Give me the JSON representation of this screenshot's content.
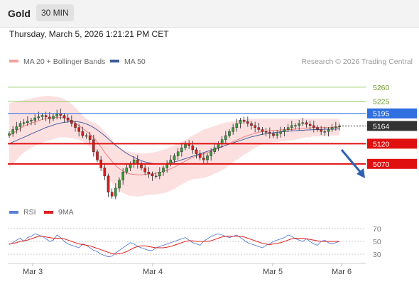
{
  "header": {
    "title": "Gold",
    "timeframe": "30 MIN"
  },
  "datetime": "Thursday, March 5, 2026 1:21:21 PM CET",
  "legend": {
    "items": [
      {
        "label": "MA 20 + Bollinger Bands",
        "color": "#f4a0a0"
      },
      {
        "label": "MA 50",
        "color": "#3d5a99"
      }
    ],
    "credit": "Research © 2026 Trading Central"
  },
  "rsi_legend": {
    "items": [
      {
        "label": "RSI",
        "color": "#5b7fd6"
      },
      {
        "label": "9MA",
        "color": "#e02020"
      }
    ]
  },
  "chart_data": [
    {
      "type": "candlestick",
      "ylim": [
        4980,
        5300
      ],
      "x_ticks": [
        "Mar 3",
        "Mar 4",
        "Mar 5",
        "Mar 6"
      ],
      "last_price": 5164,
      "levels": [
        {
          "value": 5260,
          "label": "5260",
          "kind": "resistance",
          "color": "#9acd6a"
        },
        {
          "value": 5225,
          "label": "5225",
          "kind": "resistance",
          "color": "#9acd6a"
        },
        {
          "value": 5195,
          "label": "5195",
          "kind": "pivot",
          "color": "#2f6fe0"
        },
        {
          "value": 5120,
          "label": "5120",
          "kind": "support",
          "color": "#e01010"
        },
        {
          "value": 5070,
          "label": "5070",
          "kind": "support",
          "color": "#e01010"
        }
      ],
      "close_series": [
        5145,
        5155,
        5162,
        5170,
        5172,
        5176,
        5178,
        5184,
        5187,
        5190,
        5186,
        5182,
        5188,
        5195,
        5190,
        5184,
        5178,
        5170,
        5160,
        5150,
        5140,
        5140,
        5130,
        5100,
        5080,
        5060,
        5040,
        5000,
        4990,
        5010,
        5030,
        5050,
        5060,
        5070,
        5080,
        5070,
        5060,
        5050,
        5045,
        5040,
        5040,
        5050,
        5060,
        5070,
        5080,
        5090,
        5100,
        5110,
        5120,
        5115,
        5105,
        5095,
        5085,
        5080,
        5090,
        5100,
        5110,
        5120,
        5130,
        5140,
        5150,
        5160,
        5170,
        5178,
        5175,
        5170,
        5165,
        5160,
        5155,
        5150,
        5148,
        5145,
        5140,
        5145,
        5150,
        5155,
        5160,
        5165,
        5165,
        5170,
        5172,
        5168,
        5165,
        5160,
        5155,
        5150,
        5150,
        5155,
        5160,
        5162,
        5164
      ],
      "ma20": [
        5140,
        5146,
        5152,
        5158,
        5163,
        5167,
        5171,
        5174,
        5177,
        5180,
        5182,
        5183,
        5184,
        5185,
        5185,
        5183,
        5180,
        5176,
        5171,
        5165,
        5158,
        5151,
        5144,
        5135,
        5124,
        5112,
        5099,
        5087,
        5076,
        5066,
        5058,
        5052,
        5048,
        5045,
        5044,
        5043,
        5043,
        5044,
        5045,
        5046,
        5047,
        5049,
        5051,
        5054,
        5058,
        5062,
        5067,
        5072,
        5077,
        5082,
        5086,
        5089,
        5092,
        5095,
        5098,
        5101,
        5105,
        5108,
        5112,
        5116,
        5120,
        5125,
        5129,
        5133,
        5137,
        5140,
        5143,
        5146,
        5148,
        5150,
        5151,
        5152,
        5153,
        5153,
        5154,
        5154,
        5155,
        5155,
        5156,
        5157,
        5158,
        5159,
        5159,
        5160,
        5160,
        5160,
        5160,
        5160,
        5161,
        5161,
        5161
      ],
      "ma50": [
        5120,
        5124,
        5128,
        5132,
        5136,
        5140,
        5144,
        5148,
        5152,
        5156,
        5160,
        5163,
        5166,
        5169,
        5171,
        5173,
        5174,
        5175,
        5175,
        5174,
        5172,
        5169,
        5165,
        5160,
        5154,
        5147,
        5140,
        5132,
        5124,
        5116,
        5109,
        5102,
        5096,
        5091,
        5086,
        5082,
        5078,
        5075,
        5073,
        5071,
        5070,
        5070,
        5070,
        5071,
        5073,
        5075,
        5077,
        5080,
        5083,
        5086,
        5089,
        5092,
        5095,
        5098,
        5101,
        5104,
        5107,
        5110,
        5113,
        5116,
        5119,
        5122,
        5125,
        5128,
        5131,
        5134,
        5137,
        5139,
        5141,
        5143,
        5145,
        5146,
        5147,
        5148,
        5149,
        5150,
        5151,
        5152,
        5152,
        5153,
        5153,
        5154,
        5154,
        5155,
        5155,
        5155,
        5156,
        5156,
        5156,
        5156,
        5157
      ],
      "bb_upper": [
        5220,
        5222,
        5224,
        5226,
        5228,
        5230,
        5232,
        5234,
        5236,
        5237,
        5238,
        5238,
        5237,
        5236,
        5234,
        5230,
        5225,
        5218,
        5210,
        5200,
        5190,
        5182,
        5176,
        5172,
        5168,
        5160,
        5150,
        5140,
        5130,
        5120,
        5112,
        5106,
        5102,
        5100,
        5098,
        5097,
        5096,
        5096,
        5097,
        5098,
        5100,
        5102,
        5105,
        5108,
        5112,
        5116,
        5120,
        5125,
        5130,
        5135,
        5140,
        5145,
        5150,
        5155,
        5158,
        5161,
        5164,
        5167,
        5170,
        5172,
        5174,
        5176,
        5178,
        5180,
        5181,
        5182,
        5182,
        5182,
        5182,
        5182,
        5182,
        5182,
        5182,
        5182,
        5182,
        5182,
        5182,
        5182,
        5182,
        5182,
        5182,
        5182,
        5182,
        5182,
        5182,
        5182,
        5182,
        5182,
        5182,
        5182,
        5182
      ],
      "bb_lower": [
        5060,
        5070,
        5080,
        5090,
        5098,
        5104,
        5110,
        5114,
        5118,
        5123,
        5126,
        5128,
        5131,
        5134,
        5136,
        5136,
        5135,
        5134,
        5132,
        5130,
        5126,
        5120,
        5112,
        5098,
        5080,
        5064,
        5048,
        5034,
        5022,
        5012,
        5004,
        4998,
        4994,
        4990,
        4990,
        4989,
        4990,
        4992,
        4993,
        4994,
        4994,
        4996,
        4997,
        5000,
        5004,
        5008,
        5014,
        5019,
        5024,
        5029,
        5032,
        5033,
        5034,
        5035,
        5038,
        5041,
        5046,
        5049,
        5054,
        5060,
        5066,
        5074,
        5080,
        5086,
        5093,
        5098,
        5104,
        5110,
        5114,
        5118,
        5120,
        5122,
        5124,
        5124,
        5126,
        5126,
        5128,
        5128,
        5130,
        5132,
        5134,
        5136,
        5136,
        5138,
        5138,
        5138,
        5138,
        5138,
        5140,
        5140,
        5140
      ]
    },
    {
      "type": "line",
      "name_rsi": "RSI",
      "name_ma": "9MA",
      "ylim": [
        20,
        80
      ],
      "y_ticks": [
        70,
        50,
        30
      ],
      "rsi": [
        45,
        48,
        52,
        55,
        50,
        56,
        58,
        62,
        60,
        58,
        54,
        50,
        52,
        60,
        56,
        50,
        46,
        44,
        42,
        40,
        46,
        44,
        40,
        36,
        34,
        30,
        28,
        26,
        27,
        32,
        36,
        40,
        44,
        48,
        46,
        42,
        40,
        38,
        36,
        36,
        40,
        42,
        44,
        46,
        48,
        50,
        52,
        54,
        56,
        52,
        48,
        46,
        44,
        50,
        54,
        58,
        60,
        62,
        60,
        58,
        56,
        58,
        60,
        56,
        52,
        48,
        46,
        44,
        42,
        40,
        44,
        46,
        50,
        52,
        54,
        56,
        60,
        58,
        54,
        52,
        50,
        54,
        50,
        46,
        44,
        50,
        52,
        48,
        46,
        48,
        50
      ],
      "ma9": [
        46,
        47,
        48,
        50,
        51,
        52,
        54,
        56,
        58,
        58,
        57,
        56,
        55,
        55,
        55,
        54,
        52,
        50,
        48,
        46,
        45,
        44,
        43,
        41,
        39,
        37,
        35,
        33,
        31,
        30,
        31,
        32,
        34,
        37,
        40,
        42,
        43,
        43,
        42,
        41,
        40,
        40,
        40,
        41,
        42,
        44,
        46,
        48,
        50,
        51,
        51,
        50,
        50,
        50,
        50,
        51,
        53,
        55,
        57,
        58,
        58,
        58,
        58,
        58,
        57,
        55,
        53,
        51,
        49,
        47,
        46,
        45,
        46,
        47,
        48,
        50,
        52,
        54,
        55,
        55,
        55,
        54,
        53,
        52,
        51,
        50,
        50,
        50,
        50,
        50,
        50
      ]
    }
  ]
}
